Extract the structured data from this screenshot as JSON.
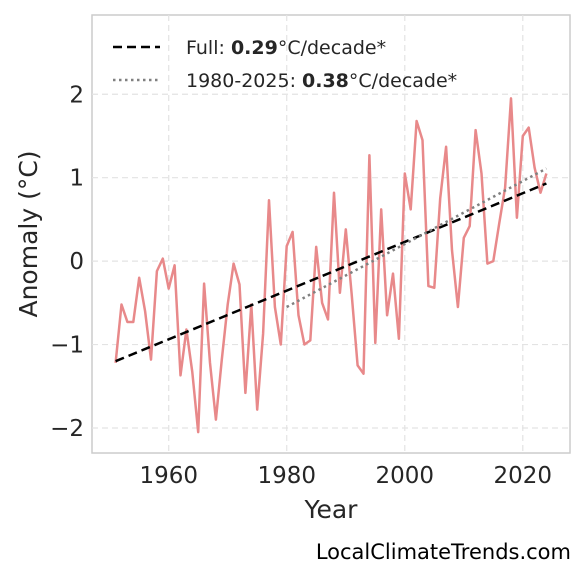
{
  "chart_data": {
    "type": "line",
    "title": "",
    "xlabel": "Year",
    "ylabel": "Anomaly (°C)",
    "xlim": [
      1947,
      2028
    ],
    "ylim": [
      -2.3,
      2.95
    ],
    "xticks": [
      1960,
      1980,
      2000,
      2020
    ],
    "yticks": [
      -2,
      -1,
      0,
      1,
      2
    ],
    "ytick_labels": [
      "−2",
      "−1",
      "0",
      "1",
      "2"
    ],
    "grid": true,
    "legend_position": "top-left",
    "series": [
      {
        "style": "solid",
        "color": "#e8898a",
        "x": [
          1951,
          1952,
          1953,
          1954,
          1955,
          1956,
          1957,
          1958,
          1959,
          1960,
          1961,
          1962,
          1963,
          1964,
          1965,
          1966,
          1967,
          1968,
          1969,
          1970,
          1971,
          1972,
          1973,
          1974,
          1975,
          1976,
          1977,
          1978,
          1979,
          1980,
          1981,
          1982,
          1983,
          1984,
          1985,
          1986,
          1987,
          1988,
          1989,
          1990,
          1991,
          1992,
          1993,
          1994,
          1995,
          1996,
          1997,
          1998,
          1999,
          2000,
          2001,
          2002,
          2003,
          2004,
          2005,
          2006,
          2007,
          2008,
          2009,
          2010,
          2011,
          2012,
          2013,
          2014,
          2015,
          2016,
          2017,
          2018,
          2019,
          2020,
          2021,
          2022,
          2023,
          2024
        ],
        "y": [
          -1.22,
          -0.52,
          -0.73,
          -0.73,
          -0.2,
          -0.6,
          -1.18,
          -0.12,
          0.03,
          -0.33,
          -0.05,
          -1.37,
          -0.82,
          -1.33,
          -2.05,
          -0.27,
          -1.22,
          -1.9,
          -1.18,
          -0.52,
          -0.03,
          -0.28,
          -1.58,
          -0.52,
          -1.78,
          -0.87,
          0.73,
          -0.55,
          -1.0,
          0.18,
          0.35,
          -0.65,
          -1.0,
          -0.95,
          0.17,
          -0.5,
          -0.7,
          0.82,
          -0.38,
          0.38,
          -0.4,
          -1.25,
          -1.35,
          1.27,
          -0.98,
          0.62,
          -0.65,
          -0.15,
          -0.93,
          1.05,
          0.62,
          1.68,
          1.45,
          -0.3,
          -0.32,
          0.75,
          1.37,
          0.13,
          -0.55,
          0.28,
          0.42,
          1.57,
          1.05,
          -0.03,
          0.0,
          0.45,
          0.88,
          1.95,
          0.52,
          1.5,
          1.6,
          1.12,
          0.82,
          1.05
        ]
      },
      {
        "name": "Full",
        "style": "dashed",
        "color": "#000000",
        "rate": "0.29",
        "unit": "°C/decade*",
        "x": [
          1951,
          2024
        ],
        "y": [
          -1.2,
          0.93
        ]
      },
      {
        "name": "1980-2025",
        "style": "dotted",
        "color": "#808080",
        "rate": "0.38",
        "unit": "°C/decade*",
        "x": [
          1980,
          2024
        ],
        "y": [
          -0.55,
          1.11
        ]
      }
    ]
  },
  "watermark": "LocalClimateTrends.com"
}
